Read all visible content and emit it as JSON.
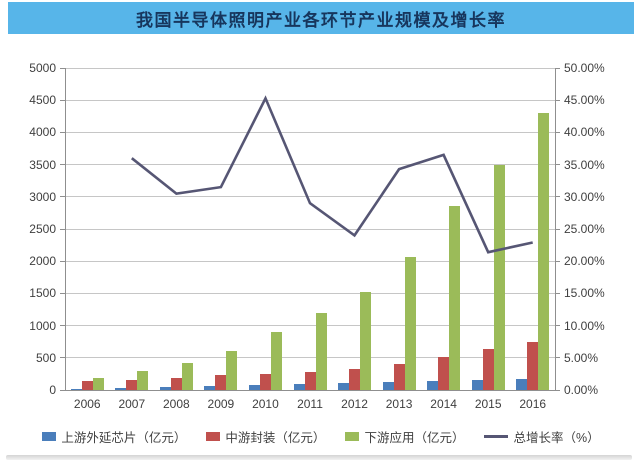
{
  "title": "我国半导体照明产业各环节产业规模及增长率",
  "chart_data": {
    "type": "bar+line combo",
    "title": "我国半导体照明产业各环节产业规模及增长率",
    "categories": [
      "2006",
      "2007",
      "2008",
      "2009",
      "2010",
      "2011",
      "2012",
      "2013",
      "2014",
      "2015",
      "2016"
    ],
    "series": [
      {
        "name": "上游外延芯片（亿元）",
        "type": "bar",
        "axis": "left",
        "color": "#4a7ebb",
        "values": [
          20,
          30,
          45,
          60,
          75,
          90,
          105,
          125,
          135,
          150,
          170
        ]
      },
      {
        "name": "中游封装（亿元）",
        "type": "bar",
        "axis": "left",
        "color": "#c0504d",
        "values": [
          135,
          160,
          185,
          230,
          250,
          285,
          320,
          400,
          520,
          630,
          750
        ]
      },
      {
        "name": "下游应用（亿元）",
        "type": "bar",
        "axis": "left",
        "color": "#9bbb59",
        "values": [
          190,
          300,
          420,
          600,
          900,
          1200,
          1520,
          2070,
          2850,
          3500,
          4300
        ]
      },
      {
        "name": "总增长率（%）",
        "type": "line",
        "axis": "right",
        "color": "#565674",
        "values": [
          null,
          36,
          30.5,
          31.5,
          45.3,
          29,
          24,
          34.3,
          36.5,
          21.4,
          22.9
        ]
      }
    ],
    "left_axis": {
      "min": 0,
      "max": 5000,
      "step": 500,
      "ticks": [
        "0",
        "500",
        "1000",
        "1500",
        "2000",
        "2500",
        "3000",
        "3500",
        "4000",
        "4500",
        "5000"
      ]
    },
    "right_axis": {
      "min": 0,
      "max": 50,
      "step": 5,
      "format": "percent",
      "ticks": [
        "0.00%",
        "5.00%",
        "10.00%",
        "15.00%",
        "20.00%",
        "25.00%",
        "30.00%",
        "35.00%",
        "40.00%",
        "45.00%",
        "50.00%"
      ]
    },
    "grid": true,
    "legend_position": "bottom"
  }
}
